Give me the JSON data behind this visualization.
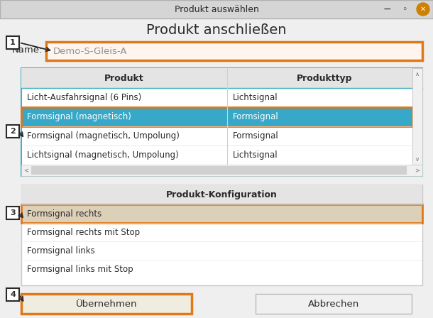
{
  "title_bar_text": "Produkt auswählen",
  "title_bar_bg": "#d5d5d5",
  "window_bg": "#efefef",
  "main_title": "Produkt anschließen",
  "name_label": "Name:",
  "name_value": "Demo-S-Gleis-A",
  "name_box_bg": "#fff5ef",
  "name_box_border": "#e07818",
  "table_border": "#48b0c0",
  "table_header_bg": "#e4e4e4",
  "table_headers": [
    "Produkt",
    "Produkttyp"
  ],
  "table_rows": [
    [
      "Licht-Ausfahrsignal (6 Pins)",
      "Lichtsignal"
    ],
    [
      "Formsignal (magnetisch)",
      "Formsignal"
    ],
    [
      "Formsignal (magnetisch, Umpolung)",
      "Formsignal"
    ],
    [
      "Lichtsignal (magnetisch, Umpolung)",
      "Lichtsignal"
    ]
  ],
  "selected_row": 1,
  "selected_bg": "#38a8c8",
  "selected_border": "#e07818",
  "config_title": "Produkt-Konfiguration",
  "config_border": "#c8c8c8",
  "config_rows": [
    "Formsignal rechts",
    "Formsignal rechts mit Stop",
    "Formsignal links",
    "Formsignal links mit Stop"
  ],
  "config_selected_row": 0,
  "config_selected_bg": "#ddd0b8",
  "config_selected_border": "#e07818",
  "btn_ok_text": "Übernehmen",
  "btn_cancel_text": "Abbrechen",
  "btn_ok_bg": "#f0ede0",
  "btn_ok_border": "#e07818",
  "btn_cancel_bg": "#f0f0f0",
  "btn_cancel_border": "#b8b8b8",
  "text_color": "#2a2a2a",
  "close_btn_color": "#d08000"
}
